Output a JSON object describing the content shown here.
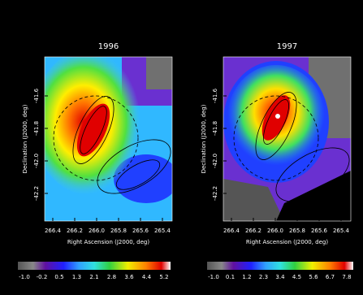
{
  "panels": [
    {
      "title": "1996",
      "y_label": "Declination (J2000, deg)",
      "x_label": "Right Ascension (J2000, deg)",
      "y_ticks": [
        "-41.6",
        "-41.8",
        "-42.0",
        "-42.2"
      ],
      "x_ticks": [
        "266.4",
        "266.2",
        "266.0",
        "265.8",
        "265.6",
        "265.4"
      ],
      "colorbar_ticks": [
        "-1.0",
        "-0.2",
        "0.5",
        "1.3",
        "2.1",
        "2.8",
        "3.6",
        "4.4",
        "5.2"
      ]
    },
    {
      "title": "1997",
      "y_label": "Declination (J2000, deg)",
      "x_label": "Right Ascension (J2000, deg)",
      "y_ticks": [
        "-41.6",
        "-41.8",
        "-42.0",
        "-42.2"
      ],
      "x_ticks": [
        "266.4",
        "266.2",
        "266.0",
        "265.8",
        "265.6",
        "265.4"
      ],
      "colorbar_ticks": [
        "-1.0",
        "0.1",
        "1.2",
        "2.3",
        "3.4",
        "4.5",
        "5.6",
        "6.7",
        "7.8"
      ]
    }
  ]
}
